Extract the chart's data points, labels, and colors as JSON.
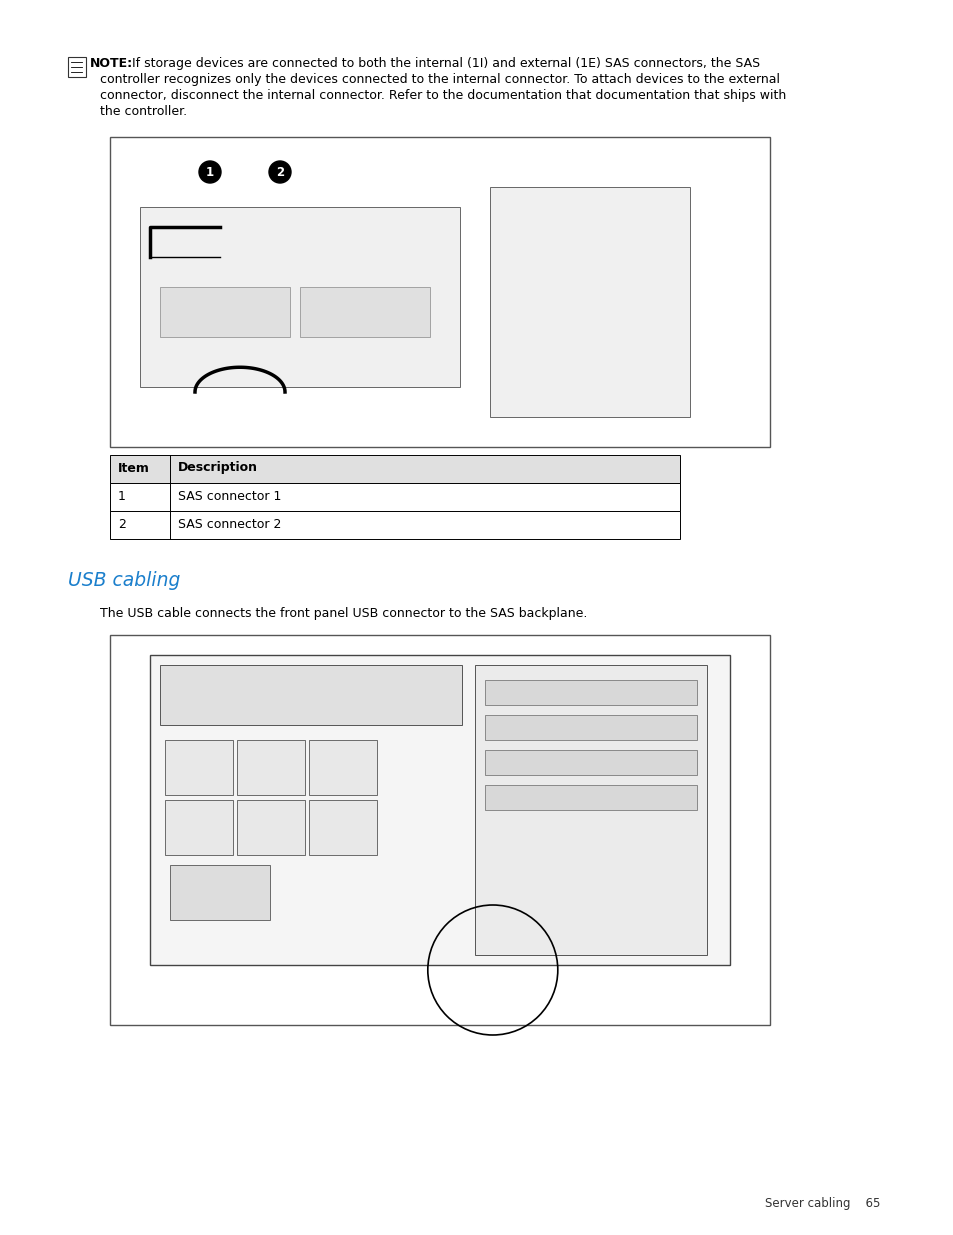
{
  "bg_color": "#ffffff",
  "note_text_line1": "If storage devices are connected to both the internal (1I) and external (1E) SAS connectors, the SAS",
  "note_text_line2": "controller recognizes only the devices connected to the internal connector. To attach devices to the external",
  "note_text_line3": "connector, disconnect the internal connector. Refer to the documentation that documentation that ships with",
  "note_text_line4": "the controller.",
  "note_bold": "NOTE:",
  "table_headers": [
    "Item",
    "Description"
  ],
  "table_rows": [
    [
      "1",
      "SAS connector 1"
    ],
    [
      "2",
      "SAS connector 2"
    ]
  ],
  "section_title": "USB cabling",
  "section_title_color": "#1B7FCC",
  "body_text": "The USB cable connects the front panel USB connector to the SAS backplane.",
  "footer_text": "Server cabling    65",
  "note_fontsize": 9.0,
  "body_fontsize": 9.0,
  "table_fontsize": 9.0,
  "section_fontsize": 13.5,
  "footer_fontsize": 8.5
}
